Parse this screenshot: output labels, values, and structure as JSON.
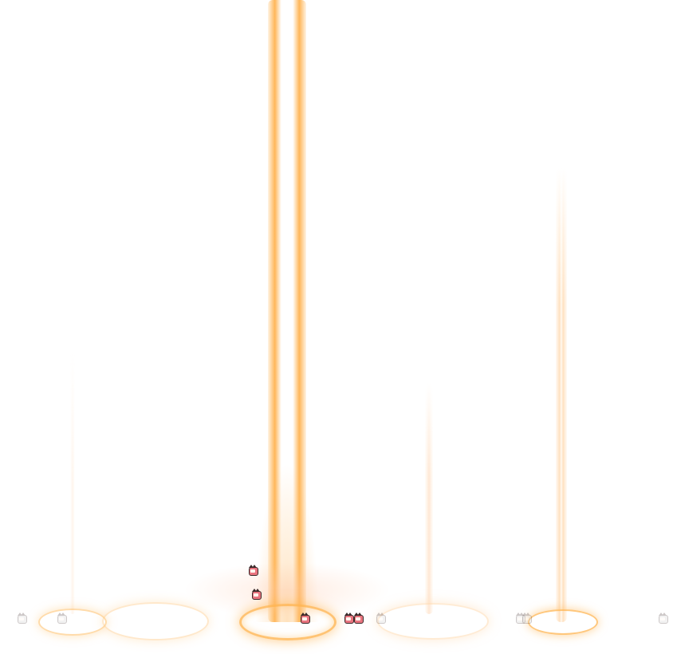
{
  "scene": {
    "colors": {
      "beam_core": "#ffffff",
      "beam_glow": "#ffb24a",
      "beam_faint": "#ffd9a8",
      "ring": "#ffb957",
      "sprite_head": "#e9747f",
      "sprite_faint_head": "#cfcfcf"
    },
    "effects": {
      "pillars": [
        "main-light-pillar",
        "left-faint-pillar",
        "middle-faint-pillar",
        "right-light-pillar"
      ],
      "rings": [
        "left-ring",
        "left-ring-2",
        "center-ring",
        "right-ring",
        "far-right-ring"
      ]
    },
    "sprites": {
      "count": 5,
      "faint_count": 6
    }
  }
}
